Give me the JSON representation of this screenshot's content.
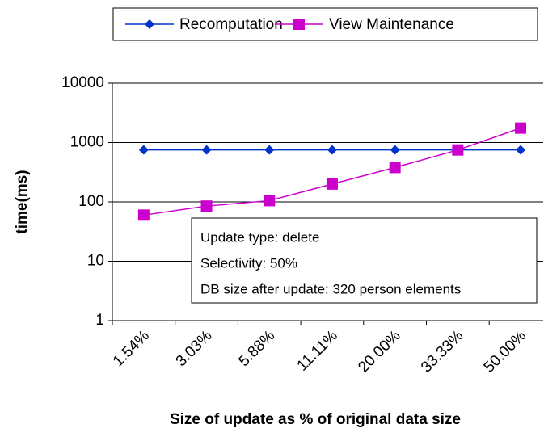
{
  "chart_data": {
    "type": "line",
    "x_label": "Size of update as % of original data size",
    "y_label": "time(ms)",
    "categories": [
      "1.54%",
      "3.03%",
      "5.88%",
      "11.11%",
      "20.00%",
      "33.33%",
      "50.00%"
    ],
    "series": [
      {
        "name": "Recomputation",
        "color": "#0033cc",
        "marker": "diamond",
        "values": [
          750,
          750,
          750,
          750,
          750,
          750,
          750
        ]
      },
      {
        "name": "View Maintenance",
        "color": "#cc00cc",
        "marker": "square",
        "values": [
          60,
          85,
          105,
          200,
          380,
          750,
          1750
        ]
      }
    ],
    "ylim": [
      1,
      10000
    ],
    "yticks": [
      1,
      10,
      100,
      1000,
      10000
    ],
    "log_y": true,
    "grid": true,
    "legend": "top",
    "annotations": [
      "Update type: delete",
      "Selectivity: 50%",
      "DB size after update: 320 person elements"
    ]
  }
}
